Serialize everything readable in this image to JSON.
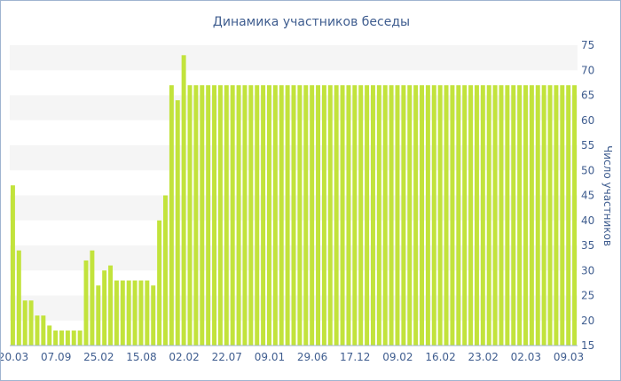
{
  "chart_data": {
    "type": "bar",
    "title": "Динамика участников беседы",
    "xlabel": "",
    "ylabel": "Число участников",
    "ylim": [
      15,
      75
    ],
    "yticks": [
      15,
      20,
      25,
      30,
      35,
      40,
      45,
      50,
      55,
      60,
      65,
      70,
      75
    ],
    "y_axis_side": "right",
    "grid": "alternating horizontal bands",
    "bar_color": "#c2e33c",
    "band_color": "#f5f5f5",
    "text_color": "#3f5d8f",
    "x_tick_labels": [
      "20.03",
      "07.09",
      "25.02",
      "15.08",
      "02.02",
      "22.07",
      "09.01",
      "29.06",
      "17.12",
      "09.02",
      "16.02",
      "23.02",
      "02.03",
      "09.03"
    ],
    "values": [
      47,
      34,
      24,
      24,
      21,
      21,
      19,
      18,
      18,
      18,
      18,
      18,
      32,
      34,
      27,
      30,
      31,
      28,
      28,
      28,
      28,
      28,
      28,
      27,
      40,
      45,
      67,
      64,
      73,
      67,
      67,
      67,
      67,
      67,
      67,
      67,
      67,
      67,
      67,
      67,
      67,
      67,
      67,
      67,
      67,
      67,
      67,
      67,
      67,
      67,
      67,
      67,
      67,
      67,
      67,
      67,
      67,
      67,
      67,
      67,
      67,
      67,
      67,
      67,
      67,
      67,
      67,
      67,
      67,
      67,
      67,
      67,
      67,
      67,
      67,
      67,
      67,
      67,
      67,
      67,
      67,
      67,
      67,
      67,
      67,
      67,
      67,
      67,
      67,
      67,
      67,
      67,
      67
    ]
  }
}
